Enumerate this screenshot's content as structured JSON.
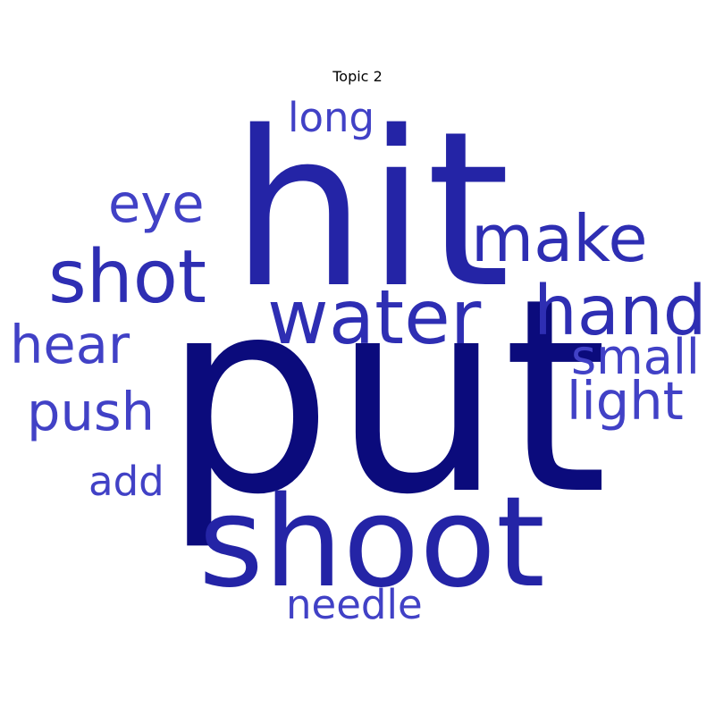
{
  "chart_data": {
    "type": "wordcloud",
    "title": "Topic 2",
    "colors": {
      "darkest": "#0b0b7c",
      "dark": "#2424a6",
      "medium": "#2e2eb3",
      "light": "#4141c6"
    },
    "words": [
      {
        "text": "put",
        "weight": 1.0,
        "shade": "darkest"
      },
      {
        "text": "hit",
        "weight": 0.8,
        "shade": "dark"
      },
      {
        "text": "shoot",
        "weight": 0.55,
        "shade": "dark"
      },
      {
        "text": "water",
        "weight": 0.33,
        "shade": "medium"
      },
      {
        "text": "shot",
        "weight": 0.32,
        "shade": "medium"
      },
      {
        "text": "hand",
        "weight": 0.29,
        "shade": "medium"
      },
      {
        "text": "make",
        "weight": 0.27,
        "shade": "medium"
      },
      {
        "text": "eye",
        "weight": 0.22,
        "shade": "light"
      },
      {
        "text": "hear",
        "weight": 0.21,
        "shade": "light"
      },
      {
        "text": "push",
        "weight": 0.21,
        "shade": "light"
      },
      {
        "text": "light",
        "weight": 0.21,
        "shade": "light"
      },
      {
        "text": "small",
        "weight": 0.2,
        "shade": "light"
      },
      {
        "text": "long",
        "weight": 0.17,
        "shade": "light"
      },
      {
        "text": "needle",
        "weight": 0.17,
        "shade": "light"
      },
      {
        "text": "add",
        "weight": 0.16,
        "shade": "light"
      }
    ]
  }
}
